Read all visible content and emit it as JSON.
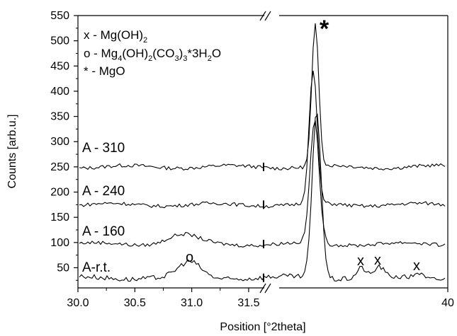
{
  "chart_data": {
    "type": "line",
    "xlabel": "Position [°2theta]",
    "ylabel": "Counts [arb.u.]",
    "ylim": [
      10,
      550
    ],
    "yticks": [
      50,
      100,
      150,
      200,
      250,
      300,
      350,
      400,
      450,
      500,
      550
    ],
    "x_tick_labels": [
      "30.0",
      "30.5",
      "31.0",
      "31.5",
      "40"
    ],
    "x_axis_break": true,
    "legend": {
      "line1": {
        "prefix": "x - Mg(OH)",
        "sub": "2"
      },
      "line2": {
        "p1": "o - Mg",
        "s1": "4",
        "p2": "(OH)",
        "s2": "2",
        "p3": "(CO",
        "s3": "3",
        "p4": ")",
        "s4": "3",
        "p5": "*3H",
        "s5": "2",
        "p6": "O"
      },
      "line3": "* - MgO"
    },
    "annotations": {
      "o_marker": "o",
      "x_marker": "x",
      "mgo_marker": "*"
    },
    "series": [
      {
        "name": "A - 310",
        "baseline": 250,
        "peak_position": "~38.9",
        "peak_counts": 530
      },
      {
        "name": "A - 240",
        "baseline": 175,
        "peak_position": "~38.9",
        "peak_counts": 438
      },
      {
        "name": "A - 160",
        "baseline": 97,
        "peak_position": "~38.9",
        "peak_counts": 340
      },
      {
        "name": "A-r.t.",
        "baseline": 30,
        "peak_position": "~39.0",
        "peak_counts": 360,
        "features": [
          {
            "label": "o",
            "position": 31.0,
            "counts": 52
          },
          {
            "label": "x",
            "position": "~39.4",
            "counts": 47
          },
          {
            "label": "x",
            "position": "~39.5",
            "counts": 47
          },
          {
            "label": "x",
            "position": "~39.8",
            "counts": 35
          }
        ]
      }
    ]
  }
}
